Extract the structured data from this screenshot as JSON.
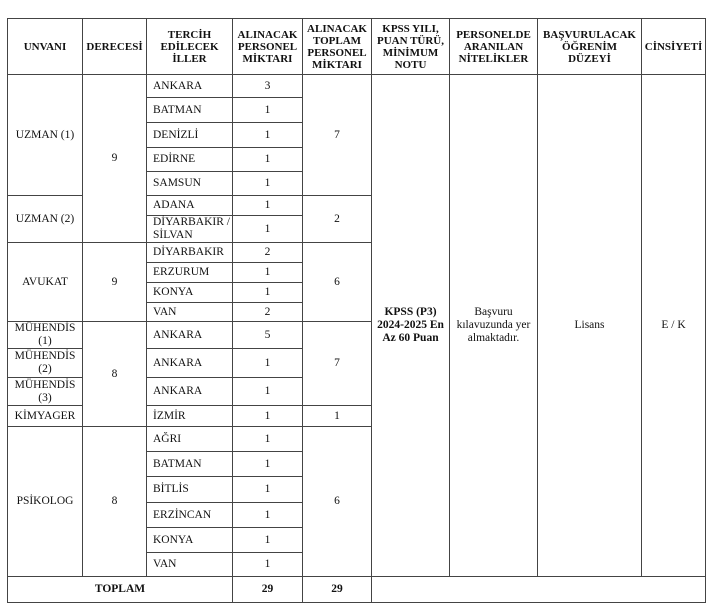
{
  "headers": [
    "UNVANI",
    "DERECESİ",
    "TERCİH EDİLECEK İLLER",
    "ALINACAK PERSONEL MİKTARI",
    "ALINACAK TOPLAM PERSONEL MİKTARI",
    "KPSS YILI, PUAN TÜRÜ, MİNİMUM NOTU",
    "PERSONELDE ARANILAN NİTELİKLER",
    "BAŞVURULACAK ÖĞRENİM DÜZEYİ",
    "CİNSİYETİ"
  ],
  "groups": [
    {
      "unvan": "UZMAN (1)",
      "derece": "9",
      "toplam": "7",
      "rows": [
        [
          "ANKARA",
          "3"
        ],
        [
          "BATMAN",
          "1"
        ],
        [
          "DENİZLİ",
          "1"
        ],
        [
          "EDİRNE",
          "1"
        ],
        [
          "SAMSUN",
          "1"
        ]
      ]
    },
    {
      "unvan": "UZMAN (2)",
      "toplam": "2",
      "rows": [
        [
          "ADANA",
          "1"
        ],
        [
          "DİYARBAKIR / SİLVAN",
          "1"
        ]
      ]
    },
    {
      "unvan": "AVUKAT",
      "derece": "9",
      "toplam": "6",
      "rows": [
        [
          "DİYARBAKIR",
          "2"
        ],
        [
          "ERZURUM",
          "1"
        ],
        [
          "KONYA",
          "1"
        ],
        [
          "VAN",
          "2"
        ]
      ]
    },
    {
      "unvan_list": [
        "MÜHENDİS (1)",
        "MÜHENDİS (2)",
        "MÜHENDİS (3)"
      ],
      "derece": "8",
      "toplam": "7",
      "rows": [
        [
          "ANKARA",
          "5"
        ],
        [
          "ANKARA",
          "1"
        ],
        [
          "ANKARA",
          "1"
        ]
      ]
    },
    {
      "unvan": "KİMYAGER",
      "toplam": "1",
      "rows": [
        [
          "İZMİR",
          "1"
        ]
      ]
    },
    {
      "unvan": "PSİKOLOG",
      "derece": "8",
      "toplam": "6",
      "rows": [
        [
          "AĞRI",
          "1"
        ],
        [
          "BATMAN",
          "1"
        ],
        [
          "BİTLİS",
          "1"
        ],
        [
          "ERZİNCAN",
          "1"
        ],
        [
          "KONYA",
          "1"
        ],
        [
          "VAN",
          "1"
        ]
      ]
    }
  ],
  "shared": {
    "kpss": "KPSS (P3) 2024-2025 En Az 60 Puan",
    "nitelik": "Başvuru kılavuzunda yer almaktadır.",
    "ogrenim": "Lisans",
    "cinsiyet": "E / K"
  },
  "total": {
    "label": "TOPLAM",
    "alinacak": "29",
    "toplam": "29"
  }
}
